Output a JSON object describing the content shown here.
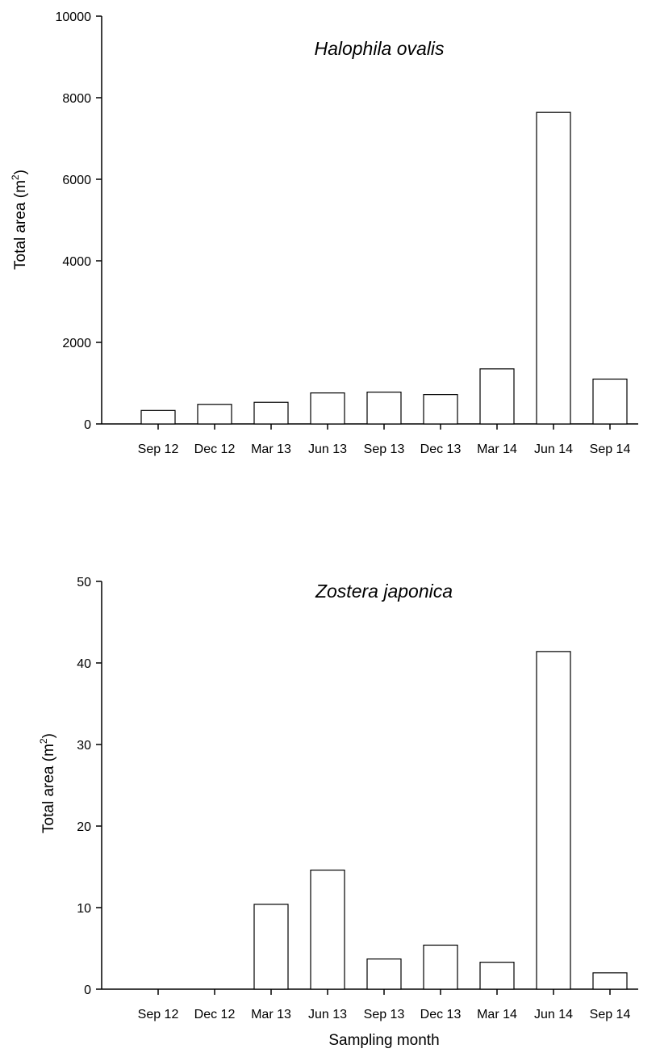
{
  "chart_data": [
    {
      "type": "bar",
      "title": "Halophila ovalis",
      "ylabel": "Total area (m",
      "ylabel_sup": "2",
      "ylabel_close": ")",
      "xlabel": "",
      "categories": [
        "Sep 12",
        "Dec 12",
        "Mar 13",
        "Jun 13",
        "Sep 13",
        "Dec 13",
        "Mar 14",
        "Jun 14",
        "Sep 14"
      ],
      "values": [
        330,
        480,
        530,
        760,
        780,
        720,
        1350,
        7640,
        1100
      ],
      "ylim": [
        0,
        10000
      ],
      "yticks": [
        "0",
        "2000",
        "4000",
        "6000",
        "8000",
        "10000"
      ],
      "ytick_values": [
        0,
        2000,
        4000,
        6000,
        8000,
        10000
      ],
      "grid": false,
      "colors": {
        "bar_fill": "#ffffff",
        "bar_stroke": "#000000"
      }
    },
    {
      "type": "bar",
      "title": "Zostera japonica",
      "ylabel": "Total area (m",
      "ylabel_sup": "2",
      "ylabel_close": ")",
      "xlabel": "Sampling month",
      "categories": [
        "Sep 12",
        "Dec 12",
        "Mar 13",
        "Jun 13",
        "Sep 13",
        "Dec 13",
        "Mar 14",
        "Jun 14",
        "Sep 14"
      ],
      "values": [
        0,
        0,
        10.4,
        14.6,
        3.7,
        5.4,
        3.3,
        41.4,
        2.0
      ],
      "ylim": [
        0,
        50
      ],
      "yticks": [
        "0",
        "10",
        "20",
        "30",
        "40",
        "50"
      ],
      "ytick_values": [
        0,
        10,
        20,
        30,
        40,
        50
      ],
      "grid": false,
      "colors": {
        "bar_fill": "#ffffff",
        "bar_stroke": "#000000"
      }
    }
  ]
}
